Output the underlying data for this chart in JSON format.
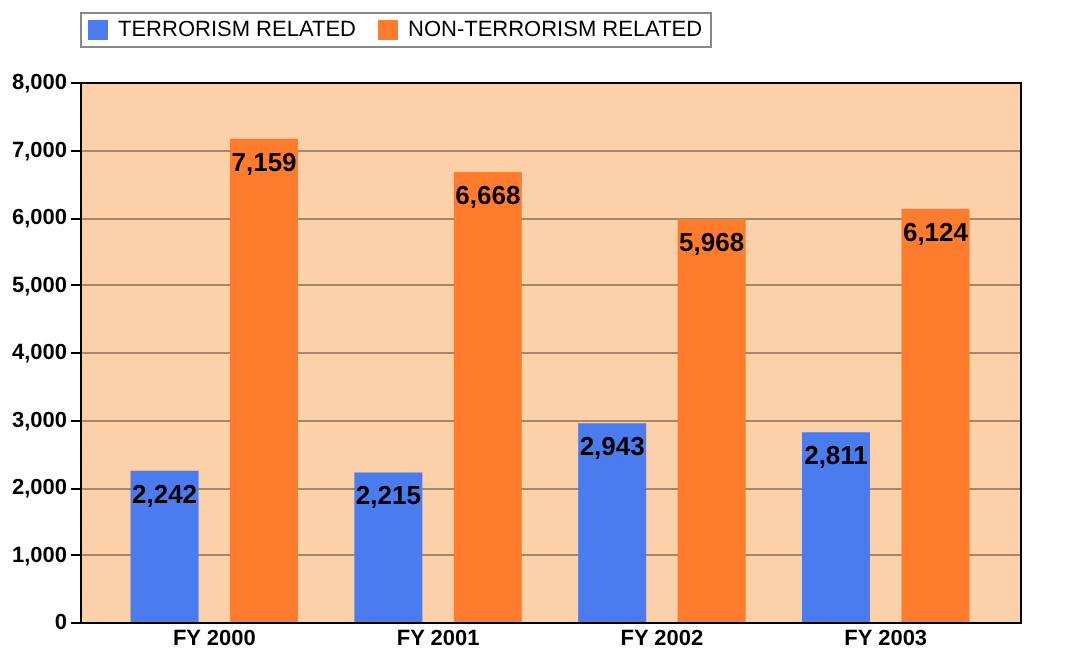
{
  "chart_data": {
    "type": "bar",
    "categories": [
      "FY 2000",
      "FY 2001",
      "FY 2002",
      "FY 2003"
    ],
    "series": [
      {
        "name": "TERRORISM RELATED",
        "color": "#4a7cf0",
        "values": [
          2242,
          2215,
          2943,
          2811
        ],
        "value_labels": [
          "2,242",
          "2,215",
          "2,943",
          "2,811"
        ]
      },
      {
        "name": "NON-TERRORISM RELATED",
        "color": "#ff7b2e",
        "values": [
          7159,
          6668,
          5968,
          6124
        ],
        "value_labels": [
          "7,159",
          "6,668",
          "5,968",
          "6,124"
        ]
      }
    ],
    "ylim": [
      0,
      8000
    ],
    "yticks": [
      0,
      {
        "value": 1000,
        "label": "1,000"
      },
      {
        "value": 2000,
        "label": "2,000"
      },
      {
        "value": 3000,
        "label": "3,000"
      },
      {
        "value": 4000,
        "label": "4,000"
      },
      {
        "value": 5000,
        "label": "5,000"
      },
      {
        "value": 6000,
        "label": "6,000"
      },
      {
        "value": 7000,
        "label": "7,000"
      },
      {
        "value": 8000,
        "label": "8,000"
      }
    ],
    "grid": "y",
    "legend": "top"
  }
}
